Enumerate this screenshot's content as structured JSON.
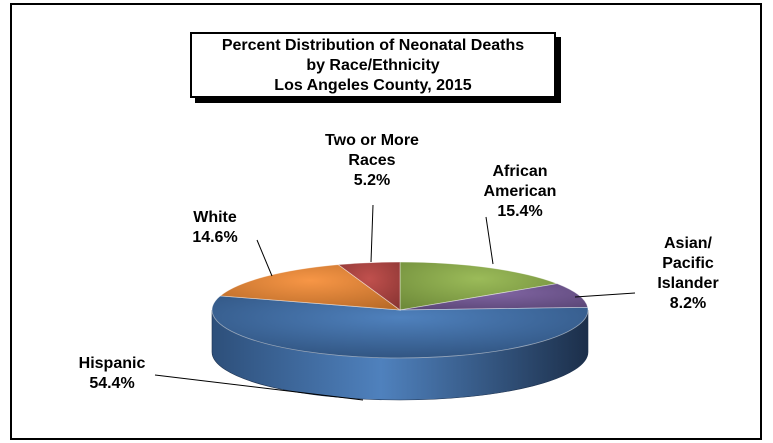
{
  "chart_data": {
    "type": "pie",
    "title": [
      "Percent Distribution of Neonatal Deaths",
      "by Race/Ethnicity",
      "Los Angeles County, 2015"
    ],
    "slices": [
      {
        "label": "African American",
        "label_lines": [
          "African",
          "American",
          "15.4%"
        ],
        "value": 15.4,
        "value_label": "15.4%",
        "color": "#9bbb59",
        "color_dark": "#6f8b3a",
        "anchor": "middle"
      },
      {
        "label": "Asian/ Pacific Islander",
        "label_lines": [
          "Asian/",
          "Pacific",
          "Islander",
          "8.2%"
        ],
        "value": 8.2,
        "value_label": "8.2%",
        "color": "#8064a2",
        "color_dark": "#5a4676",
        "anchor": "middle"
      },
      {
        "label": "Hispanic",
        "label_lines": [
          "Hispanic",
          "54.4%"
        ],
        "value": 54.4,
        "value_label": "54.4%",
        "color": "#4f81bd",
        "color_dark": "#2d4f7a",
        "anchor": "middle"
      },
      {
        "label": "White",
        "label_lines": [
          "White",
          "14.6%"
        ],
        "value": 14.6,
        "value_label": "14.6%",
        "color": "#f79646",
        "color_dark": "#b86a28",
        "anchor": "middle"
      },
      {
        "label": "Two or More Races",
        "label_lines": [
          "Two or More",
          "Races",
          "5.2%"
        ],
        "value": 5.2,
        "value_label": "5.2%",
        "color": "#c0504d",
        "color_dark": "#8a3533",
        "anchor": "middle"
      }
    ],
    "start_angle_deg": -90,
    "direction": "clockwise"
  }
}
